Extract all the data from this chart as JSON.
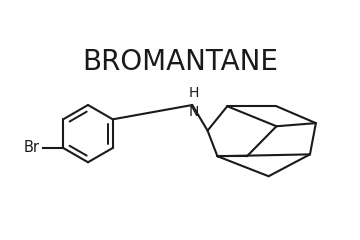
{
  "title": "BROMANTANE",
  "title_fontsize": 20,
  "title_font": "DejaVu Sans",
  "title_fontweight": "normal",
  "bg_color": "#ffffff",
  "line_color": "#1a1a1a",
  "line_width": 1.5,
  "text_color": "#1a1a1a",
  "xlim": [
    -2.6,
    2.6
  ],
  "ylim": [
    -1.1,
    1.1
  ]
}
